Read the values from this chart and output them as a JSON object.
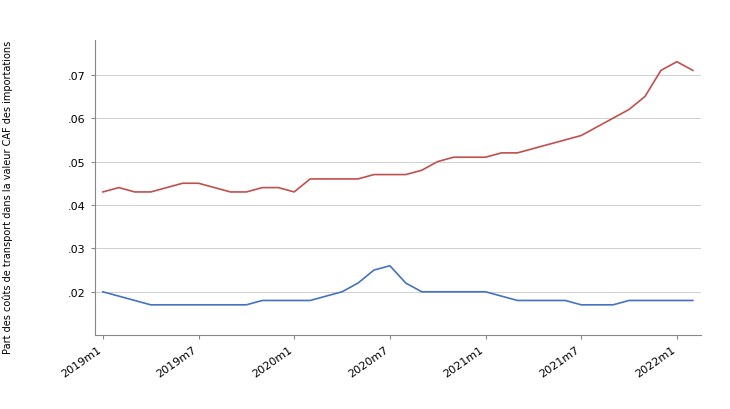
{
  "ylabel": "Part des coûts de transport dans la valeur CAF des importations",
  "x_labels": [
    "2019m1",
    "2019m7",
    "2020m1",
    "2020m7",
    "2021m1",
    "2021m7",
    "2022m1"
  ],
  "containerized": [
    0.043,
    0.044,
    0.043,
    0.043,
    0.044,
    0.045,
    0.045,
    0.044,
    0.043,
    0.043,
    0.044,
    0.044,
    0.043,
    0.046,
    0.046,
    0.046,
    0.046,
    0.047,
    0.047,
    0.047,
    0.048,
    0.05,
    0.051,
    0.051,
    0.051,
    0.052,
    0.052,
    0.053,
    0.054,
    0.055,
    0.056,
    0.058,
    0.06,
    0.062,
    0.065,
    0.071,
    0.073,
    0.071
  ],
  "non_containerized": [
    0.02,
    0.019,
    0.018,
    0.017,
    0.017,
    0.017,
    0.017,
    0.017,
    0.017,
    0.017,
    0.018,
    0.018,
    0.018,
    0.018,
    0.019,
    0.02,
    0.022,
    0.025,
    0.026,
    0.022,
    0.02,
    0.02,
    0.02,
    0.02,
    0.02,
    0.019,
    0.018,
    0.018,
    0.018,
    0.018,
    0.017,
    0.017,
    0.017,
    0.018,
    0.018,
    0.018,
    0.018,
    0.018
  ],
  "color_containerized": "#c0504d",
  "color_non_containerized": "#4472c4",
  "ylim": [
    0.01,
    0.078
  ],
  "yticks": [
    0.02,
    0.03,
    0.04,
    0.05,
    0.06,
    0.07
  ],
  "ytick_labels": [
    ".02",
    ".03",
    ".04",
    ".05",
    ".06",
    ".07"
  ],
  "n_points": 38,
  "xtick_positions": [
    0,
    6,
    12,
    18,
    24,
    30,
    36
  ]
}
